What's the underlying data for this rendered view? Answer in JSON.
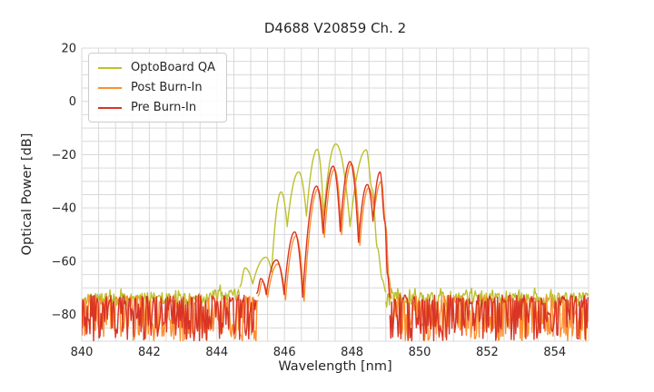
{
  "chart_data": {
    "type": "line",
    "title": "D4688 V20859 Ch. 2",
    "xlabel": "Wavelength [nm]",
    "ylabel": "Optical Power [dB]",
    "xlim": [
      840,
      855
    ],
    "ylim": [
      -90,
      20
    ],
    "x_ticks": [
      840,
      842,
      844,
      846,
      848,
      850,
      852,
      854
    ],
    "y_ticks": [
      20,
      0,
      -20,
      -40,
      -60,
      -80
    ],
    "grid": {
      "visible": true,
      "x_step": 0.5,
      "y_step": 5,
      "color": "#d9d9d9"
    },
    "legend": {
      "position": "upper left"
    },
    "series": [
      {
        "name": "OptoBoard QA",
        "color": "#bcc02f",
        "peaks_nm_db": [
          [
            844.68,
            -69.5,
            "e"
          ],
          [
            844.83,
            -62.5,
            "p"
          ],
          [
            845.06,
            -68.5,
            "v"
          ],
          [
            845.45,
            -58.5,
            "p"
          ],
          [
            845.62,
            -64.0,
            "v"
          ],
          [
            845.9,
            -34.0,
            "p"
          ],
          [
            846.08,
            -47.0,
            "v"
          ],
          [
            846.42,
            -26.5,
            "p"
          ],
          [
            846.65,
            -43.0,
            "v"
          ],
          [
            846.97,
            -18.0,
            "p"
          ],
          [
            847.16,
            -43.0,
            "v"
          ],
          [
            847.52,
            -16.0,
            "p"
          ],
          [
            847.94,
            -47.0,
            "v"
          ],
          [
            848.42,
            -18.2,
            "p"
          ],
          [
            848.6,
            -33.0,
            "e"
          ],
          [
            848.75,
            -55.0,
            "e"
          ],
          [
            848.9,
            -67.0,
            "e"
          ],
          [
            849.0,
            -71.5,
            "e"
          ]
        ],
        "noise_bands": [
          {
            "nm": [
              840.0,
              843.8
            ],
            "top": -72.0,
            "bottom": -77.0,
            "style": "band"
          },
          {
            "nm": [
              843.8,
              844.68
            ],
            "top": -70.6,
            "bottom": -75.0,
            "style": "band"
          },
          {
            "nm": [
              849.0,
              855.0
            ],
            "top": -71.8,
            "bottom": -77.5,
            "style": "band"
          }
        ]
      },
      {
        "name": "Post Burn-In",
        "color": "#fd8f2e",
        "peaks_nm_db": [
          [
            845.22,
            -73.0,
            "e"
          ],
          [
            845.34,
            -67.5,
            "p"
          ],
          [
            845.5,
            -73.5,
            "v"
          ],
          [
            845.8,
            -61.0,
            "p"
          ],
          [
            846.03,
            -74.5,
            "v"
          ],
          [
            846.34,
            -50.5,
            "p"
          ],
          [
            846.58,
            -75.0,
            "v"
          ],
          [
            846.99,
            -33.0,
            "p"
          ],
          [
            847.18,
            -51.0,
            "v"
          ],
          [
            847.48,
            -25.5,
            "p"
          ],
          [
            847.69,
            -50.0,
            "v"
          ],
          [
            847.98,
            -23.5,
            "p"
          ],
          [
            848.23,
            -54.0,
            "v"
          ],
          [
            848.49,
            -32.5,
            "p"
          ],
          [
            848.66,
            -41.0,
            "v"
          ],
          [
            848.87,
            -30.0,
            "p"
          ],
          [
            849.0,
            -47.0,
            "e"
          ],
          [
            849.09,
            -66.0,
            "e"
          ],
          [
            849.17,
            -74.0,
            "e"
          ]
        ],
        "noise_bands": [
          {
            "nm": [
              840.0,
              845.22
            ],
            "top": -73.0,
            "bottom": -90.0,
            "style": "dense"
          },
          {
            "nm": [
              849.17,
              855.0
            ],
            "top": -72.8,
            "bottom": -90.0,
            "style": "dense"
          }
        ]
      },
      {
        "name": "Pre Burn-In",
        "color": "#d93425",
        "peaks_nm_db": [
          [
            845.18,
            -72.0,
            "e"
          ],
          [
            845.3,
            -66.5,
            "p"
          ],
          [
            845.46,
            -72.5,
            "v"
          ],
          [
            845.76,
            -59.5,
            "p"
          ],
          [
            845.99,
            -72.5,
            "v"
          ],
          [
            846.3,
            -49.0,
            "p"
          ],
          [
            846.54,
            -73.5,
            "v"
          ],
          [
            846.95,
            -31.8,
            "p"
          ],
          [
            847.14,
            -49.5,
            "v"
          ],
          [
            847.44,
            -24.3,
            "p"
          ],
          [
            847.65,
            -48.8,
            "v"
          ],
          [
            847.94,
            -22.6,
            "p"
          ],
          [
            848.19,
            -52.9,
            "v"
          ],
          [
            848.45,
            -31.2,
            "p"
          ],
          [
            848.62,
            -45.0,
            "v"
          ],
          [
            848.83,
            -26.5,
            "p"
          ],
          [
            848.97,
            -45.0,
            "e"
          ],
          [
            849.05,
            -65.0,
            "e"
          ],
          [
            849.12,
            -73.5,
            "e"
          ]
        ],
        "noise_bands": [
          {
            "nm": [
              840.0,
              845.18
            ],
            "top": -72.6,
            "bottom": -90.0,
            "style": "dense"
          },
          {
            "nm": [
              849.12,
              855.0
            ],
            "top": -72.6,
            "bottom": -90.0,
            "style": "dense"
          }
        ]
      }
    ]
  }
}
